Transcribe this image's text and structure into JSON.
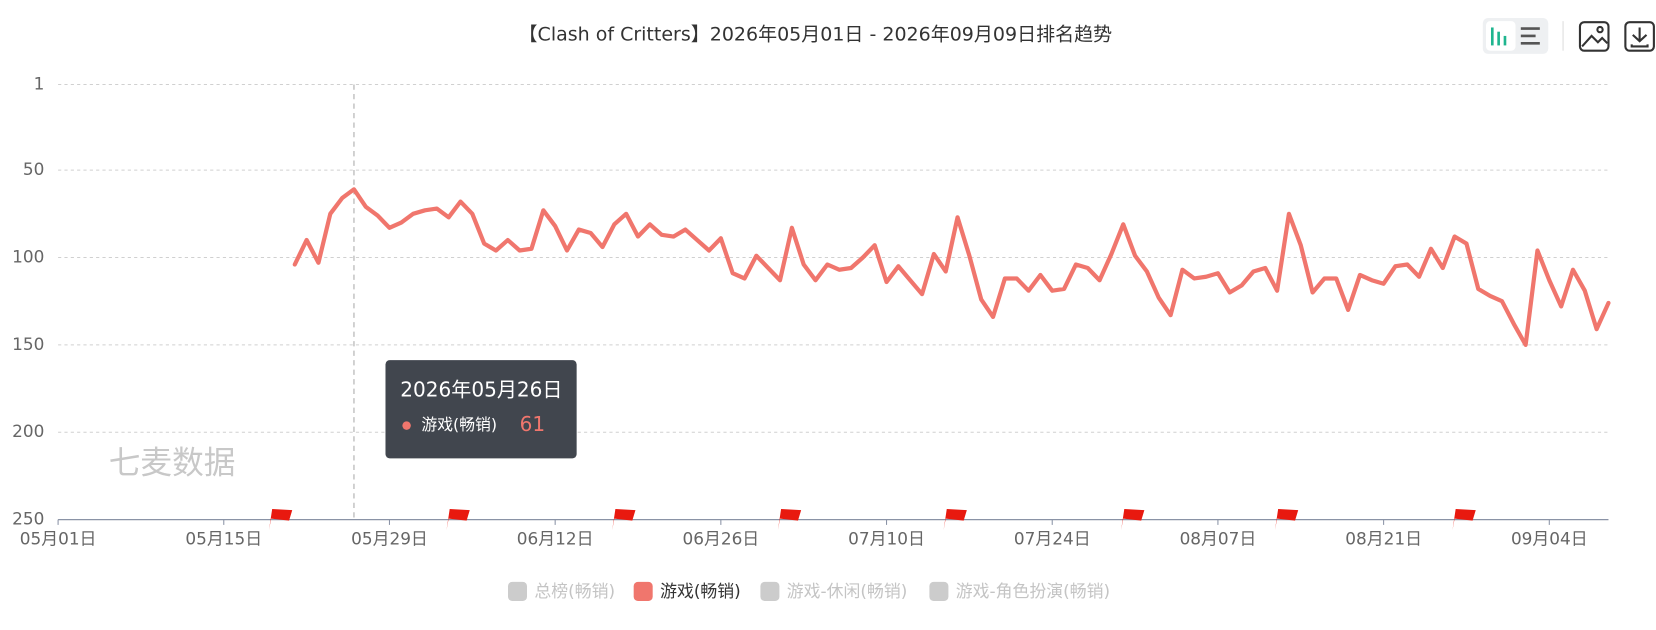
{
  "chart_data": {
    "type": "line",
    "title": "【Clash of Critters】2026年05月01日 - 2026年09月09日排名趋势",
    "watermark": "七麦数据",
    "x": [
      "2026-05-21",
      "2026-05-22",
      "2026-05-23",
      "2026-05-24",
      "2026-05-25",
      "2026-05-26",
      "2026-05-27",
      "2026-05-28",
      "2026-05-29",
      "2026-05-30",
      "2026-05-31",
      "2026-06-01",
      "2026-06-02",
      "2026-06-03",
      "2026-06-04",
      "2026-06-05",
      "2026-06-06",
      "2026-06-07",
      "2026-06-08",
      "2026-06-09",
      "2026-06-10",
      "2026-06-11",
      "2026-06-12",
      "2026-06-13",
      "2026-06-14",
      "2026-06-15",
      "2026-06-16",
      "2026-06-17",
      "2026-06-18",
      "2026-06-19",
      "2026-06-20",
      "2026-06-21",
      "2026-06-22",
      "2026-06-23",
      "2026-06-24",
      "2026-06-25",
      "2026-06-26",
      "2026-06-27",
      "2026-06-28",
      "2026-06-29",
      "2026-06-30",
      "2026-07-01",
      "2026-07-02",
      "2026-07-03",
      "2026-07-04",
      "2026-07-05",
      "2026-07-06",
      "2026-07-07",
      "2026-07-08",
      "2026-07-09",
      "2026-07-10",
      "2026-07-11",
      "2026-07-12",
      "2026-07-13",
      "2026-07-14",
      "2026-07-15",
      "2026-07-16",
      "2026-07-17",
      "2026-07-18",
      "2026-07-19",
      "2026-07-20",
      "2026-07-21",
      "2026-07-22",
      "2026-07-23",
      "2026-07-24",
      "2026-07-25",
      "2026-07-26",
      "2026-07-27",
      "2026-07-28",
      "2026-07-29",
      "2026-07-30",
      "2026-07-31",
      "2026-08-01",
      "2026-08-02",
      "2026-08-03",
      "2026-08-04",
      "2026-08-05",
      "2026-08-06",
      "2026-08-07",
      "2026-08-08",
      "2026-08-09",
      "2026-08-10",
      "2026-08-11",
      "2026-08-12",
      "2026-08-13",
      "2026-08-14",
      "2026-08-15",
      "2026-08-16",
      "2026-08-17",
      "2026-08-18",
      "2026-08-19",
      "2026-08-20",
      "2026-08-21",
      "2026-08-22",
      "2026-08-23",
      "2026-08-24",
      "2026-08-25",
      "2026-08-26",
      "2026-08-27",
      "2026-08-28",
      "2026-08-29",
      "2026-08-30",
      "2026-08-31",
      "2026-09-01",
      "2026-09-02",
      "2026-09-03",
      "2026-09-04",
      "2026-09-05",
      "2026-09-06",
      "2026-09-07",
      "2026-09-08",
      "2026-09-09"
    ],
    "series": [
      {
        "name": "总榜(畅销)",
        "color": "#cccccc",
        "visible": false
      },
      {
        "name": "游戏(畅销)",
        "color": "#f0766d",
        "visible": true,
        "values": [
          104,
          90,
          103,
          75,
          66,
          61,
          71,
          76,
          83,
          80,
          75,
          73,
          72,
          77,
          68,
          75,
          92,
          96,
          90,
          96,
          95,
          73,
          82,
          96,
          84,
          86,
          94,
          81,
          75,
          88,
          81,
          87,
          88,
          84,
          90,
          96,
          89,
          109,
          112,
          99,
          106,
          113,
          83,
          104,
          113,
          104,
          107,
          106,
          100,
          93,
          114,
          105,
          113,
          121,
          98,
          108,
          77,
          99,
          124,
          134,
          112,
          112,
          119,
          110,
          119,
          118,
          104,
          106,
          113,
          98,
          81,
          99,
          108,
          123,
          133,
          107,
          112,
          111,
          109,
          120,
          116,
          108,
          106,
          119,
          75,
          93,
          120,
          112,
          112,
          130,
          110,
          113,
          115,
          105,
          104,
          111,
          95,
          106,
          88,
          92,
          118,
          122,
          125,
          138,
          150,
          96,
          113,
          128,
          107,
          119,
          141,
          126
        ]
      },
      {
        "name": "游戏-休闲(畅销)",
        "color": "#cccccc",
        "visible": false
      },
      {
        "name": "游戏-角色扮演(畅销)",
        "color": "#cccccc",
        "visible": false
      }
    ],
    "xlim": [
      "2026-05-01",
      "2026-09-09"
    ],
    "xticks": [
      {
        "value": "2026-05-01",
        "label": "05月01日"
      },
      {
        "value": "2026-05-15",
        "label": "05月15日"
      },
      {
        "value": "2026-05-29",
        "label": "05月29日"
      },
      {
        "value": "2026-06-12",
        "label": "06月12日"
      },
      {
        "value": "2026-06-26",
        "label": "06月26日"
      },
      {
        "value": "2026-07-10",
        "label": "07月10日"
      },
      {
        "value": "2026-07-24",
        "label": "07月24日"
      },
      {
        "value": "2026-08-07",
        "label": "08月07日"
      },
      {
        "value": "2026-08-21",
        "label": "08月21日"
      },
      {
        "value": "2026-09-04",
        "label": "09月04日"
      }
    ],
    "ylim": [
      1,
      250
    ],
    "y_inverted": true,
    "yticks": [
      1,
      50,
      100,
      150,
      200,
      250
    ],
    "grid": true,
    "event_markers": {
      "color": "#e8190f",
      "x": [
        "2026-05-19",
        "2026-06-03",
        "2026-06-17",
        "2026-07-01",
        "2026-07-15",
        "2026-07-30",
        "2026-08-12",
        "2026-08-27"
      ]
    },
    "tooltip": {
      "title": "2026年05月26日",
      "series": 1,
      "index": 5
    }
  }
}
